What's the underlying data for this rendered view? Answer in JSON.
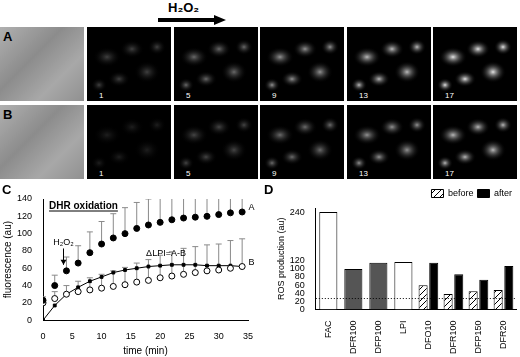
{
  "image_panels": {
    "stimulus": "H₂O₂",
    "rows": [
      {
        "label": "A"
      },
      {
        "label": "B"
      }
    ],
    "frames": [
      1,
      5,
      9,
      13,
      17
    ]
  },
  "chart_data": [
    {
      "panel": "C",
      "type": "scatter",
      "title": "DHR oxidation",
      "x_label": "time (min)",
      "y_label": "fluorescence (au)",
      "x": [
        0,
        2,
        4,
        6,
        8,
        10,
        12,
        14,
        16,
        18,
        20,
        22,
        24,
        26,
        28,
        30,
        32,
        34
      ],
      "xlim": [
        0,
        35
      ],
      "xticks": [
        0,
        5,
        10,
        15,
        20,
        25,
        30,
        35
      ],
      "ylim": [
        0,
        140
      ],
      "yticks": [
        0,
        20,
        40,
        60,
        80,
        100,
        120,
        140
      ],
      "grid": false,
      "series": [
        {
          "type": "scatter",
          "marker": "circle",
          "line_style": "none",
          "color": "#000000",
          "values": [
            23,
            40,
            57,
            66,
            78,
            88,
            95,
            100,
            106,
            110,
            113,
            116,
            118,
            119,
            120,
            122,
            124,
            125
          ],
          "error_plus": [
            4,
            12,
            16,
            20,
            24,
            26,
            28,
            30,
            30,
            30,
            28,
            28,
            28,
            26,
            24,
            24,
            22,
            20
          ]
        },
        {
          "type": "scatter",
          "marker": "circle_open",
          "line_style": "none",
          "color": "#000000",
          "values": [
            20,
            25,
            30,
            33,
            35,
            37,
            39,
            41,
            44,
            46,
            49,
            51,
            53,
            55,
            57,
            58,
            60,
            62
          ],
          "error_plus": [
            4,
            8,
            10,
            12,
            14,
            16,
            18,
            20,
            22,
            24,
            26,
            28,
            30,
            30,
            30,
            30,
            32,
            32
          ]
        },
        {
          "type": "line",
          "marker": "square",
          "line_style": "solid",
          "color": "#000000",
          "values": [
            0,
            17,
            30,
            38,
            45,
            50,
            55,
            58,
            60,
            62,
            63,
            64,
            64,
            64,
            63,
            63,
            63,
            62
          ]
        }
      ],
      "annotations": [
        {
          "text": "H₂O₂",
          "x": 3.5,
          "y": 84,
          "arrow_to": [
            3.5,
            64
          ]
        },
        {
          "text": "A",
          "x": 35.6,
          "y": 125
        },
        {
          "text": "B",
          "x": 35.6,
          "y": 62
        },
        {
          "text": "ΔLPI=A-B",
          "x": 21,
          "y": 72
        }
      ]
    },
    {
      "panel": "D",
      "type": "bar",
      "y_label": "ROS production (au)",
      "categories": [
        "FAC",
        "DFR100",
        "DFP100",
        "LPI",
        "DFO10",
        "DFR100",
        "DFP150",
        "DFR20"
      ],
      "ylim": [
        0,
        250
      ],
      "yticks": [
        0,
        20,
        40,
        60,
        80,
        100,
        120,
        240
      ],
      "grid": false,
      "legend": "upper right",
      "hline": 27,
      "series": [
        {
          "colors": [
            "#ffffff",
            "#555555",
            "#555555",
            "#ffffff",
            "#ffffff",
            "#ffffff",
            "#ffffff",
            "#ffffff"
          ],
          "values": [
            240,
            100,
            115,
            117,
            null,
            null,
            null,
            null
          ]
        },
        {
          "name": "before",
          "color": "#000000",
          "values": [
            null,
            null,
            null,
            null,
            60,
            38,
            45,
            48
          ]
        },
        {
          "name": "after",
          "color": "#000000",
          "values": [
            null,
            null,
            null,
            null,
            115,
            87,
            73,
            107
          ]
        }
      ]
    }
  ]
}
